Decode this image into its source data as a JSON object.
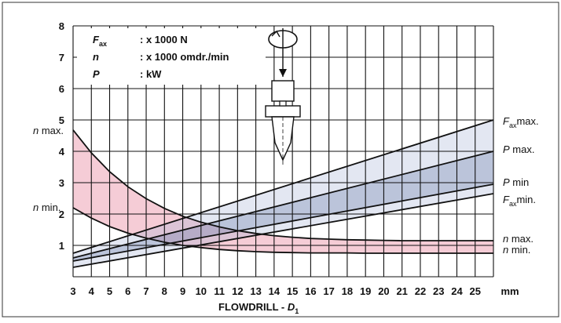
{
  "chart_data": {
    "type": "line",
    "xlabel_text": "FLOWDRILL - ",
    "xlabel_var": "D",
    "xlabel_sub": "1",
    "x_unit": "mm",
    "x_ticks": [
      "3",
      "4",
      "5",
      "6",
      "7",
      "8",
      "9",
      "10",
      "11",
      "12",
      "13",
      "14",
      "15",
      "16",
      "17",
      "18",
      "19",
      "20",
      "21",
      "22",
      "23",
      "24",
      "25"
    ],
    "y_ticks": [
      "1",
      "2",
      "3",
      "4",
      "5",
      "6",
      "7",
      "8"
    ],
    "xlim": [
      3,
      26
    ],
    "ylim": [
      0,
      8
    ],
    "grid": true,
    "legend": [
      {
        "sym": "F",
        "sub": "ax",
        "text": ": x 1000 N"
      },
      {
        "sym": "n",
        "sub": "",
        "text": ": x 1000 omdr./min"
      },
      {
        "sym": "P",
        "sub": "",
        "text": ": kW"
      }
    ],
    "left_labels": [
      {
        "sym": "n",
        "text": " max.",
        "y": 4.65
      },
      {
        "sym": "n",
        "text": " min.",
        "y": 2.2
      }
    ],
    "right_labels": [
      {
        "sym": "F",
        "sub": "ax",
        "text": "max.",
        "y": 4.95
      },
      {
        "sym": "P",
        "sub": "",
        "text": " max.",
        "y": 4.05
      },
      {
        "sym": "P",
        "sub": "",
        "text": " min",
        "y": 3.0
      },
      {
        "sym": "F",
        "sub": "ax",
        "text": "min.",
        "y": 2.45
      },
      {
        "sym": "n",
        "sub": "",
        "text": " max.",
        "y": 1.2
      },
      {
        "sym": "n",
        "sub": "",
        "text": " min.",
        "y": 0.85
      }
    ],
    "series": [
      {
        "name": "Fax max.",
        "x": [
          3,
          26
        ],
        "y": [
          0.75,
          5.0
        ]
      },
      {
        "name": "P max.",
        "x": [
          3,
          26
        ],
        "y": [
          0.6,
          4.0
        ]
      },
      {
        "name": "P min",
        "x": [
          3,
          26
        ],
        "y": [
          0.5,
          2.95
        ]
      },
      {
        "name": "Fax min.",
        "x": [
          3,
          26
        ],
        "y": [
          0.3,
          2.65
        ]
      },
      {
        "name": "n max.",
        "x": [
          3,
          4,
          5,
          6,
          7,
          8,
          9,
          10,
          11,
          12,
          13,
          14,
          15,
          16,
          17,
          18,
          19,
          20,
          21,
          22,
          23,
          24,
          25,
          26
        ],
        "y": [
          4.68,
          3.95,
          3.35,
          2.87,
          2.49,
          2.18,
          1.93,
          1.74,
          1.59,
          1.47,
          1.38,
          1.31,
          1.26,
          1.22,
          1.2,
          1.18,
          1.17,
          1.16,
          1.15,
          1.15,
          1.15,
          1.15,
          1.15,
          1.15
        ]
      },
      {
        "name": "n min.",
        "x": [
          3,
          4,
          5,
          6,
          7,
          8,
          9,
          10,
          11,
          12,
          13,
          14,
          15,
          16,
          17,
          18,
          19,
          20,
          21,
          22,
          23,
          24,
          25,
          26
        ],
        "y": [
          2.2,
          1.87,
          1.6,
          1.39,
          1.23,
          1.1,
          1.0,
          0.93,
          0.87,
          0.83,
          0.8,
          0.78,
          0.77,
          0.76,
          0.76,
          0.76,
          0.75,
          0.75,
          0.75,
          0.75,
          0.75,
          0.75,
          0.75,
          0.75
        ]
      }
    ],
    "bands": [
      {
        "name": "n band",
        "upper": "n max.",
        "lower": "n min.",
        "color": "#e06080"
      },
      {
        "name": "Fax band",
        "upper": "Fax max.",
        "lower": "Fax min.",
        "color": "#a8b4d8"
      },
      {
        "name": "P band",
        "upper": "P max.",
        "lower": "P min",
        "color": "#6878a8"
      }
    ]
  }
}
